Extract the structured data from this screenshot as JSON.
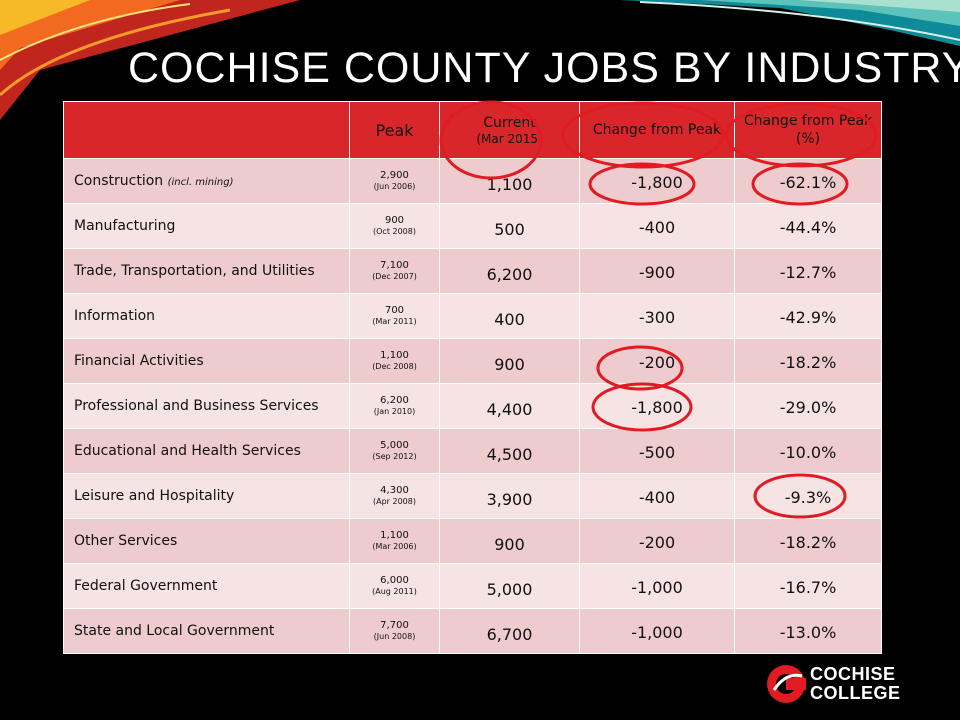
{
  "title": "COCHISE COUNTY JOBS BY INDUSTRY",
  "columns": {
    "peak": "Peak",
    "current": "Current",
    "current_sub": "(Mar 2015)",
    "change": "Change from Peak",
    "pct_change": "Change from Peak (%)"
  },
  "rows": [
    {
      "industry": "Construction",
      "note": "(incl. mining)",
      "peak": "2,900",
      "peak_date": "(Jun 2006)",
      "current": "1,100",
      "change": "-1,800",
      "pct": "-62.1%"
    },
    {
      "industry": "Manufacturing",
      "note": "",
      "peak": "900",
      "peak_date": "(Oct 2008)",
      "current": "500",
      "change": "-400",
      "pct": "-44.4%"
    },
    {
      "industry": "Trade, Transportation, and Utilities",
      "note": "",
      "peak": "7,100",
      "peak_date": "(Dec 2007)",
      "current": "6,200",
      "change": "-900",
      "pct": "-12.7%"
    },
    {
      "industry": "Information",
      "note": "",
      "peak": "700",
      "peak_date": "(Mar 2011)",
      "current": "400",
      "change": "-300",
      "pct": "-42.9%"
    },
    {
      "industry": "Financial Activities",
      "note": "",
      "peak": "1,100",
      "peak_date": "(Dec 2008)",
      "current": "900",
      "change": "-200",
      "pct": "-18.2%"
    },
    {
      "industry": "Professional and Business Services",
      "note": "",
      "peak": "6,200",
      "peak_date": "(Jan 2010)",
      "current": "4,400",
      "change": "-1,800",
      "pct": "-29.0%"
    },
    {
      "industry": "Educational and Health Services",
      "note": "",
      "peak": "5,000",
      "peak_date": "(Sep 2012)",
      "current": "4,500",
      "change": "-500",
      "pct": "-10.0%"
    },
    {
      "industry": "Leisure and Hospitality",
      "note": "",
      "peak": "4,300",
      "peak_date": "(Apr 2008)",
      "current": "3,900",
      "change": "-400",
      "pct": "-9.3%"
    },
    {
      "industry": "Other Services",
      "note": "",
      "peak": "1,100",
      "peak_date": "(Mar 2006)",
      "current": "900",
      "change": "-200",
      "pct": "-18.2%"
    },
    {
      "industry": "Federal Government",
      "note": "",
      "peak": "6,000",
      "peak_date": "(Aug 2011)",
      "current": "5,000",
      "change": "-1,000",
      "pct": "-16.7%"
    },
    {
      "industry": "State and Local Government",
      "note": "",
      "peak": "7,700",
      "peak_date": "(Jun 2008)",
      "current": "6,700",
      "change": "-1,000",
      "pct": "-13.0%"
    }
  ],
  "logo": {
    "line1": "COCHISE",
    "line2": "COLLEGE"
  },
  "colors": {
    "header_red": "#d8262a",
    "row_dark": "#eecccd",
    "row_light": "#f6e3e3",
    "annotation": "#e01b22"
  }
}
